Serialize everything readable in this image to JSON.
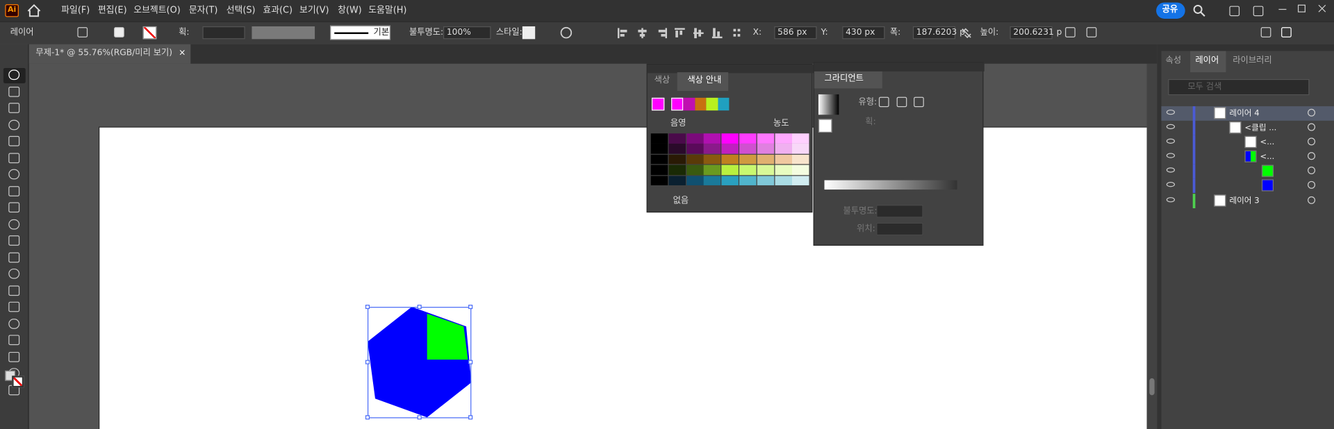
{
  "app": {
    "logo": "Ai"
  },
  "menu": [
    "파일(F)",
    "편집(E)",
    "오브젝트(O)",
    "문자(T)",
    "선택(S)",
    "효과(C)",
    "보기(V)",
    "창(W)",
    "도움말(H)"
  ],
  "share": "공유",
  "control_bar": {
    "selection": "레이어",
    "stroke_label": "획:",
    "stroke_style": "기본",
    "opacity_label": "불투명도:",
    "opacity": "100%",
    "style_label": "스타일:",
    "x_label": "X:",
    "x": "586 px",
    "y_label": "Y:",
    "y": "430 px",
    "w_label": "폭:",
    "w": "187.6203 p",
    "h_label": "높이:",
    "h": "200.6231 p"
  },
  "document_tab": {
    "title": "무제-1* @ 55.76%(RGB/미리 보기)",
    "close": "×"
  },
  "color_panel": {
    "tabs": [
      "색상",
      "색상 안내"
    ],
    "shade": "음영",
    "tint": "농도",
    "none": "없음"
  },
  "gradient_panel": {
    "title": "그라디언트",
    "type_label": "유형:",
    "stroke_label": "획:",
    "opacity_label": "불투명도:",
    "location_label": "위치:"
  },
  "right_panel": {
    "tabs": [
      "속성",
      "레이어",
      "라이브러리"
    ],
    "search_placeholder": "모두 검색",
    "layers": [
      "레이어 4",
      "<클립 ...",
      "<...",
      "<...",
      "레이어 3"
    ]
  }
}
